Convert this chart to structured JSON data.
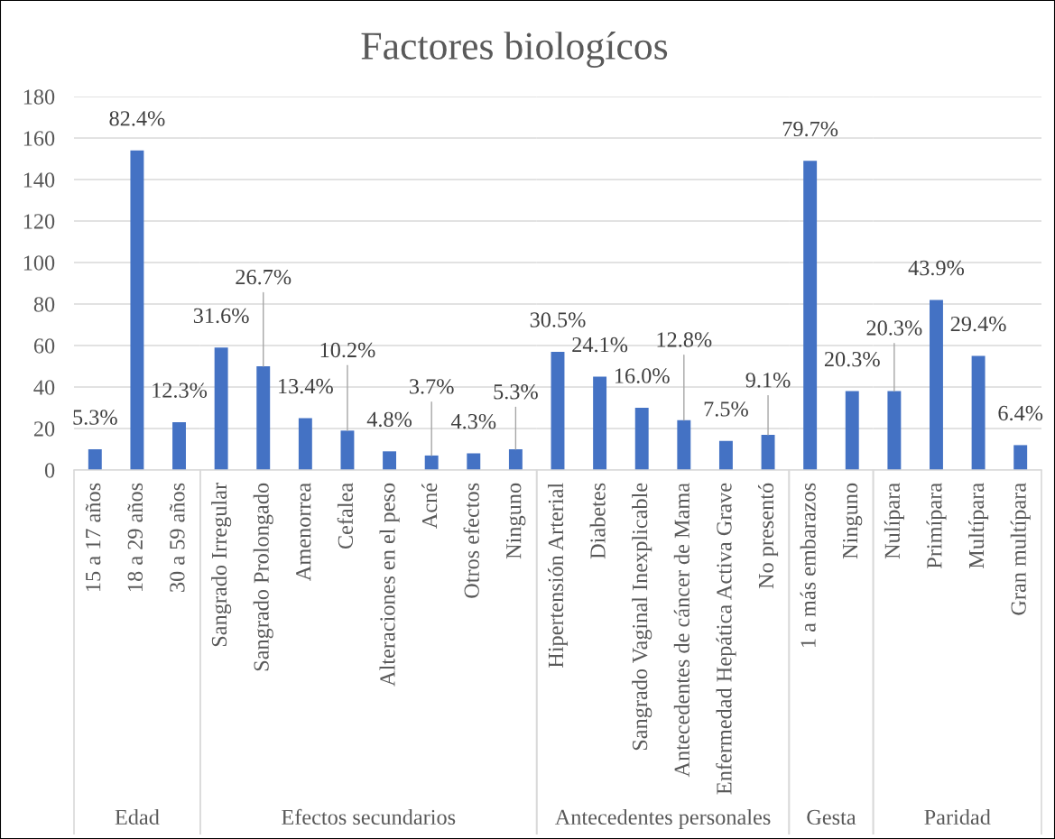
{
  "chart_data": [
    {
      "type": "bar",
      "xlabel": "Edad",
      "categories": [
        "15 a 17 años",
        "18 a 29 años",
        "30 a 59 años"
      ],
      "values": [
        10,
        154,
        23
      ],
      "color": "#4472c4",
      "ylim": [
        0,
        180
      ],
      "yticks": [
        0,
        20,
        40,
        60,
        80,
        100,
        120,
        140,
        160,
        180
      ],
      "grid": "y",
      "annotations": [
        {
          "text": "5.3%",
          "x": "15 a 17 años",
          "y": 10
        },
        {
          "text": "82.4%",
          "x": "18 a 29 años",
          "y": 154
        },
        {
          "text": "12.3%",
          "x": "30 a 59 años",
          "y": 23
        }
      ]
    },
    {
      "type": "bar",
      "title": "Factores biologícos",
      "xlabel": "Efectos secundarios",
      "categories": [
        "Sangrado Irregular",
        "Sangrado Prolongado",
        "Amenorrea",
        "Cefalea",
        "Alteraciones en el peso",
        "Acné",
        "Otros efectos",
        "Ninguno"
      ],
      "values": [
        59,
        50,
        25,
        19,
        9,
        7,
        8,
        10
      ],
      "color": "#4472c4",
      "ylim": [
        0,
        180
      ],
      "yticks": [
        0,
        20,
        40,
        60,
        80,
        100,
        120,
        140,
        160,
        180
      ],
      "grid": "y",
      "tick_labels": "x",
      "annotations": [
        {
          "text": "31.6%",
          "x": "Sangrado Irregular",
          "y": 59
        },
        {
          "text": "26.7%",
          "x": "Sangrado Prolongado",
          "y": 50
        },
        {
          "text": "13.4%",
          "x": "Amenorrea",
          "y": 25
        },
        {
          "text": "10.2%",
          "x": "Cefalea",
          "y": 19
        },
        {
          "text": "4.8%",
          "x": "Alteraciones en el peso",
          "y": 9
        },
        {
          "text": "3.7%",
          "x": "Acné",
          "y": 7
        },
        {
          "text": "4.3%",
          "x": "Otros efectos",
          "y": 8
        },
        {
          "text": "5.3%",
          "x": "Ninguno",
          "y": 10
        }
      ]
    },
    {
      "type": "bar",
      "xlabel": "Antecedentes personales",
      "categories": [
        "Hipertensión Arterial",
        "Diabetes",
        "Sangrado Vaginal Inexplicable",
        "Antecedentes de cáncer de Mama",
        "Enfermedad Hepática Activa Grave",
        "No presentó"
      ],
      "values": [
        57,
        45,
        30,
        24,
        14,
        17
      ],
      "color": "#4472c4",
      "ylim": [
        0,
        180
      ],
      "yticks": [
        0,
        20,
        40,
        60,
        80,
        100,
        120,
        140,
        160,
        180
      ],
      "grid": "y",
      "tick_labels": "x",
      "annotations": [
        {
          "text": "30.5%",
          "x": "Hipertensión Arterial",
          "y": 57
        },
        {
          "text": "24.1%",
          "x": "Diabetes",
          "y": 45
        },
        {
          "text": "16.0%",
          "x": "Sangrado Vaginal Inexplicable",
          "y": 30
        },
        {
          "text": "12.8%",
          "x": "Antecedentes de cáncer de Mama",
          "y": 24
        },
        {
          "text": "7.5%",
          "x": "Enfermedad Hepática Activa Grave",
          "y": 14
        },
        {
          "text": "9.1%",
          "x": "No presentó",
          "y": 17
        }
      ]
    },
    {
      "type": "bar",
      "xlabel": "Gesta",
      "categories": [
        "1 a más embarazos",
        "Ninguno"
      ],
      "values": [
        149,
        38
      ],
      "color": "#4472c4",
      "ylim": [
        0,
        180
      ],
      "yticks": [
        0,
        20,
        40,
        60,
        80,
        100,
        120,
        140,
        160,
        180
      ],
      "grid": "y",
      "tick_labels": "x",
      "annotations": [
        {
          "text": "79.7%",
          "x": "1 a más embarazos",
          "y": 149
        },
        {
          "text": "20.3%",
          "x": "Ninguno",
          "y": 38
        }
      ]
    },
    {
      "type": "bar",
      "xlabel": "Paridad",
      "categories": [
        "Nulípara",
        "Primípara",
        "Multípara",
        "Gran multípara"
      ],
      "values": [
        38,
        82,
        55,
        12
      ],
      "color": "#4472c4",
      "ylim": [
        0,
        180
      ],
      "yticks": [
        0,
        20,
        40,
        60,
        80,
        100,
        120,
        140,
        160,
        180
      ],
      "grid": "y",
      "tick_labels": "x",
      "annotations": [
        {
          "text": "20.3%",
          "x": "Nulípara",
          "y": 38
        },
        {
          "text": "43.9%",
          "x": "Primípara",
          "y": 82
        },
        {
          "text": "29.4%",
          "x": "Multípara",
          "y": 55
        },
        {
          "text": "6.4%",
          "x": "Gran multípara",
          "y": 12
        }
      ]
    }
  ]
}
